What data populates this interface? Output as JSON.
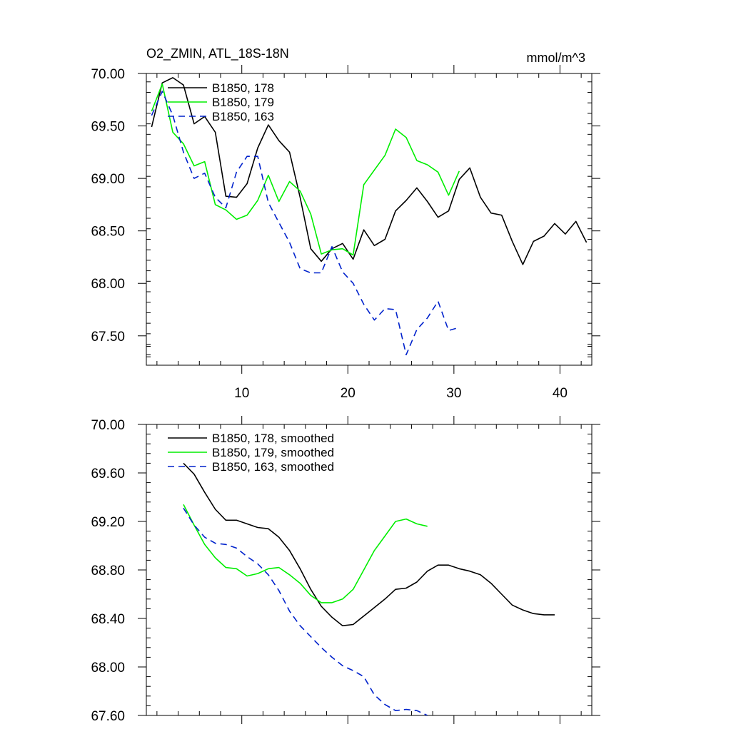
{
  "header": {
    "title": "O2_ZMIN, ATL_18S-18N",
    "units": "mmol/m^3"
  },
  "chart_data": [
    {
      "type": "line",
      "title": "O2_ZMIN, ATL_18S-18N",
      "units": "mmol/m^3",
      "xlim": [
        1,
        43
      ],
      "ylim": [
        67.22,
        70.0
      ],
      "xticks": [
        10,
        20,
        30,
        40
      ],
      "yticks": [
        67.5,
        68.0,
        68.5,
        69.0,
        69.5,
        70.0
      ],
      "ytick_labels": [
        "67.50",
        "68.00",
        "68.50",
        "69.00",
        "69.50",
        "70.00"
      ],
      "legend_position": "top-left",
      "series": [
        {
          "name": "B1850, 178",
          "color": "#000000",
          "dash": "solid",
          "x": [
            1.5,
            2.5,
            3.5,
            4.5,
            5.5,
            6.5,
            7.5,
            8.5,
            9.5,
            10.5,
            11.5,
            12.5,
            13.5,
            14.5,
            15.5,
            16.5,
            17.5,
            18.5,
            19.5,
            20.5,
            21.5,
            22.5,
            23.5,
            24.5,
            25.5,
            26.5,
            27.5,
            28.5,
            29.5,
            30.5,
            31.5,
            32.5,
            33.5,
            34.5,
            35.5,
            36.5,
            37.5,
            38.5,
            39.5,
            40.5,
            41.5,
            42.5
          ],
          "y": [
            69.49,
            69.91,
            69.96,
            69.89,
            69.52,
            69.59,
            69.44,
            68.83,
            68.82,
            68.95,
            69.29,
            69.51,
            69.36,
            69.25,
            68.82,
            68.33,
            68.21,
            68.33,
            68.38,
            68.23,
            68.51,
            68.36,
            68.42,
            68.69,
            68.79,
            68.91,
            68.78,
            68.63,
            68.69,
            68.99,
            69.1,
            68.82,
            68.67,
            68.65,
            68.4,
            68.18,
            68.4,
            68.45,
            68.57,
            68.47,
            68.59,
            68.39
          ]
        },
        {
          "name": "B1850, 179",
          "color": "#00ee00",
          "dash": "solid",
          "x": [
            1.5,
            2.5,
            3.5,
            4.5,
            5.5,
            6.5,
            7.5,
            8.5,
            9.5,
            10.5,
            11.5,
            12.5,
            13.5,
            14.5,
            15.5,
            16.5,
            17.5,
            18.5,
            19.5,
            20.5,
            21.5,
            22.5,
            23.5,
            24.5,
            25.5,
            26.5,
            27.5,
            28.5,
            29.5,
            30.5
          ],
          "y": [
            69.64,
            69.9,
            69.44,
            69.33,
            69.12,
            69.16,
            68.75,
            68.7,
            68.61,
            68.65,
            68.79,
            69.03,
            68.78,
            68.97,
            68.88,
            68.66,
            68.28,
            68.32,
            68.33,
            68.27,
            68.94,
            69.08,
            69.22,
            69.47,
            69.39,
            69.17,
            69.13,
            69.06,
            68.84,
            69.07
          ]
        },
        {
          "name": "B1850, 163",
          "color": "#0022cc",
          "dash": "dashed",
          "x": [
            1.5,
            2.5,
            3.5,
            4.5,
            5.5,
            6.5,
            7.5,
            8.5,
            9.5,
            10.5,
            11.5,
            12.5,
            13.5,
            14.5,
            15.5,
            16.5,
            17.5,
            18.5,
            19.5,
            20.5,
            21.5,
            22.5,
            23.5,
            24.5,
            25.5,
            26.5,
            27.5,
            28.5,
            29.5,
            30.5
          ],
          "y": [
            69.6,
            69.83,
            69.6,
            69.25,
            69.0,
            69.05,
            68.82,
            68.72,
            69.06,
            69.21,
            69.21,
            68.77,
            68.58,
            68.39,
            68.14,
            68.1,
            68.1,
            68.35,
            68.11,
            68.0,
            67.8,
            67.65,
            67.76,
            67.75,
            67.32,
            67.56,
            67.67,
            67.83,
            67.55,
            67.58
          ]
        }
      ]
    },
    {
      "type": "line",
      "xlim": [
        1,
        43
      ],
      "ylim": [
        67.6,
        70.0
      ],
      "xticks": [
        10,
        20,
        30,
        40
      ],
      "yticks": [
        67.6,
        68.0,
        68.4,
        68.8,
        69.2,
        69.6,
        70.0
      ],
      "ytick_labels": [
        "67.60",
        "68.00",
        "68.40",
        "68.80",
        "69.20",
        "69.60",
        "70.00"
      ],
      "legend_position": "top-left",
      "series": [
        {
          "name": "B1850, 178, smoothed",
          "color": "#000000",
          "dash": "solid",
          "x": [
            4.5,
            5.5,
            6.5,
            7.5,
            8.5,
            9.5,
            10.5,
            11.5,
            12.5,
            13.5,
            14.5,
            15.5,
            16.5,
            17.5,
            18.5,
            19.5,
            20.5,
            21.5,
            22.5,
            23.5,
            24.5,
            25.5,
            26.5,
            27.5,
            28.5,
            29.5,
            30.5,
            31.5,
            32.5,
            33.5,
            34.5,
            35.5,
            36.5,
            37.5,
            38.5,
            39.5
          ],
          "y": [
            69.68,
            69.59,
            69.44,
            69.3,
            69.21,
            69.21,
            69.18,
            69.15,
            69.14,
            69.07,
            68.96,
            68.81,
            68.64,
            68.5,
            68.41,
            68.34,
            68.35,
            68.42,
            68.49,
            68.56,
            68.64,
            68.65,
            68.7,
            68.79,
            68.84,
            68.84,
            68.81,
            68.79,
            68.76,
            68.69,
            68.6,
            68.51,
            68.47,
            68.44,
            68.43,
            68.43
          ]
        },
        {
          "name": "B1850, 179, smoothed",
          "color": "#00ee00",
          "dash": "solid",
          "x": [
            4.5,
            5.5,
            6.5,
            7.5,
            8.5,
            9.5,
            10.5,
            11.5,
            12.5,
            13.5,
            14.5,
            15.5,
            16.5,
            17.5,
            18.5,
            19.5,
            20.5,
            21.5,
            22.5,
            23.5,
            24.5,
            25.5,
            26.5,
            27.5
          ],
          "y": [
            69.34,
            69.17,
            69.01,
            68.9,
            68.82,
            68.81,
            68.75,
            68.77,
            68.81,
            68.82,
            68.76,
            68.69,
            68.59,
            68.53,
            68.53,
            68.56,
            68.64,
            68.8,
            68.96,
            69.08,
            69.2,
            69.22,
            69.18,
            69.16
          ]
        },
        {
          "name": "B1850, 163, smoothed",
          "color": "#0022cc",
          "dash": "dashed",
          "x": [
            4.5,
            5.5,
            6.5,
            7.5,
            8.5,
            9.5,
            10.5,
            11.5,
            12.5,
            13.5,
            14.5,
            15.5,
            16.5,
            17.5,
            18.5,
            19.5,
            20.5,
            21.5,
            22.5,
            23.5,
            24.5,
            25.5,
            26.5,
            27.5
          ],
          "y": [
            69.31,
            69.17,
            69.07,
            69.02,
            69.01,
            68.98,
            68.91,
            68.85,
            68.76,
            68.63,
            68.46,
            68.34,
            68.25,
            68.16,
            68.08,
            68.01,
            67.97,
            67.92,
            67.77,
            67.69,
            67.64,
            67.65,
            67.64,
            67.6
          ]
        }
      ]
    }
  ]
}
